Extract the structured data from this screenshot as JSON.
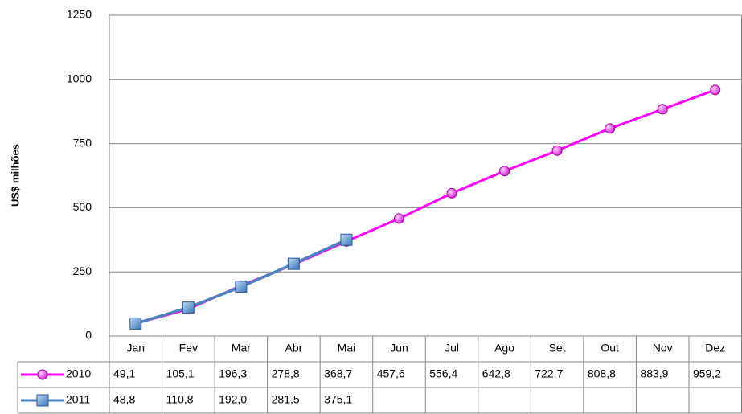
{
  "chart_data": {
    "type": "line",
    "y_label": "US$ milhões",
    "categories": [
      "Jan",
      "Fev",
      "Mar",
      "Abr",
      "Mai",
      "Jun",
      "Jul",
      "Ago",
      "Set",
      "Out",
      "Nov",
      "Dez"
    ],
    "series": [
      {
        "name": "2010",
        "color": "#ff00ff",
        "marker": "circle",
        "values": [
          49.1,
          105.1,
          196.3,
          278.8,
          368.7,
          457.6,
          556.4,
          642.8,
          722.7,
          808.8,
          883.9,
          959.2
        ],
        "value_labels": [
          "49,1",
          "105,1",
          "196,3",
          "278,8",
          "368,7",
          "457,6",
          "556,4",
          "642,8",
          "722,7",
          "808,8",
          "883,9",
          "959,2"
        ]
      },
      {
        "name": "2011",
        "color": "#4f81bd",
        "marker": "square",
        "values": [
          48.8,
          110.8,
          192.0,
          281.5,
          375.1,
          null,
          null,
          null,
          null,
          null,
          null,
          null
        ],
        "value_labels": [
          "48,8",
          "110,8",
          "192,0",
          "281,5",
          "375,1",
          null,
          null,
          null,
          null,
          null,
          null,
          null
        ]
      }
    ],
    "ylim": [
      0,
      1250
    ],
    "yticks": [
      0,
      250,
      500,
      750,
      1000,
      1250
    ],
    "grid": true
  }
}
